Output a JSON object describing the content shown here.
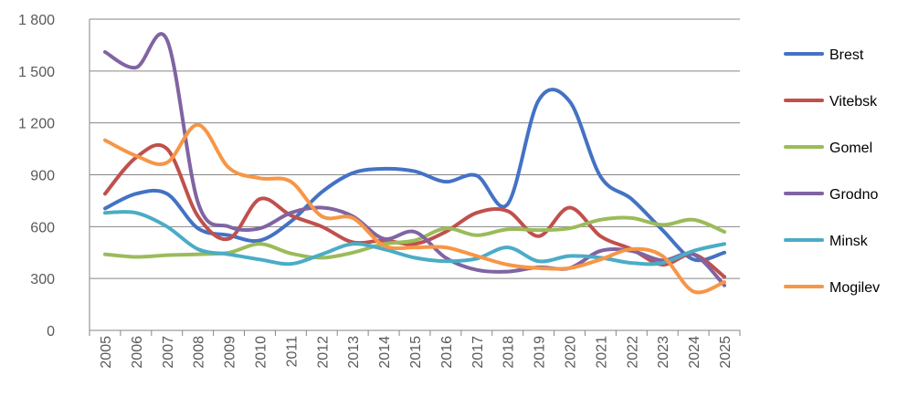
{
  "chart_data": {
    "type": "line",
    "title": "",
    "xlabel": "",
    "ylabel": "",
    "ylim": [
      0,
      1800
    ],
    "yticks": [
      0,
      300,
      600,
      900,
      1200,
      1500,
      1800
    ],
    "ytick_labels": [
      "0",
      "300",
      "600",
      "900",
      "1 200",
      "1 500",
      "1 800"
    ],
    "grid": "horizontal",
    "legend_position": "right",
    "categories": [
      "2005",
      "2006",
      "2007",
      "2008",
      "2009",
      "2010",
      "2011",
      "2012",
      "2013",
      "2014",
      "2015",
      "2016",
      "2017",
      "2018",
      "2019",
      "2020",
      "2021",
      "2022",
      "2023",
      "2024",
      "2025"
    ],
    "series": [
      {
        "name": "Brest",
        "color": "#4472C4",
        "values": [
          705,
          790,
          790,
          590,
          550,
          520,
          630,
          800,
          910,
          935,
          920,
          860,
          895,
          730,
          1330,
          1325,
          890,
          760,
          580,
          410,
          450
        ]
      },
      {
        "name": "Vitebsk",
        "color": "#C0504D",
        "values": [
          790,
          1000,
          1050,
          660,
          530,
          760,
          665,
          600,
          510,
          520,
          500,
          570,
          680,
          690,
          545,
          710,
          545,
          470,
          380,
          440,
          310
        ]
      },
      {
        "name": "Gomel",
        "color": "#9BBB59",
        "values": [
          440,
          425,
          435,
          440,
          450,
          500,
          445,
          420,
          450,
          500,
          520,
          590,
          550,
          585,
          580,
          590,
          640,
          650,
          610,
          640,
          570
        ]
      },
      {
        "name": "Grodno",
        "color": "#8064A2",
        "values": [
          1610,
          1520,
          1680,
          740,
          600,
          590,
          680,
          710,
          660,
          530,
          570,
          420,
          350,
          340,
          365,
          360,
          460,
          460,
          405,
          440,
          260
        ]
      },
      {
        "name": "Minsk",
        "color": "#4BACC6",
        "values": [
          680,
          680,
          600,
          470,
          440,
          410,
          385,
          440,
          500,
          470,
          420,
          400,
          415,
          480,
          400,
          430,
          420,
          390,
          390,
          460,
          500
        ]
      },
      {
        "name": "Mogilev",
        "color": "#F79646",
        "values": [
          1100,
          1010,
          970,
          1190,
          940,
          880,
          860,
          660,
          650,
          490,
          480,
          480,
          430,
          380,
          360,
          360,
          410,
          470,
          430,
          225,
          280
        ]
      }
    ]
  }
}
